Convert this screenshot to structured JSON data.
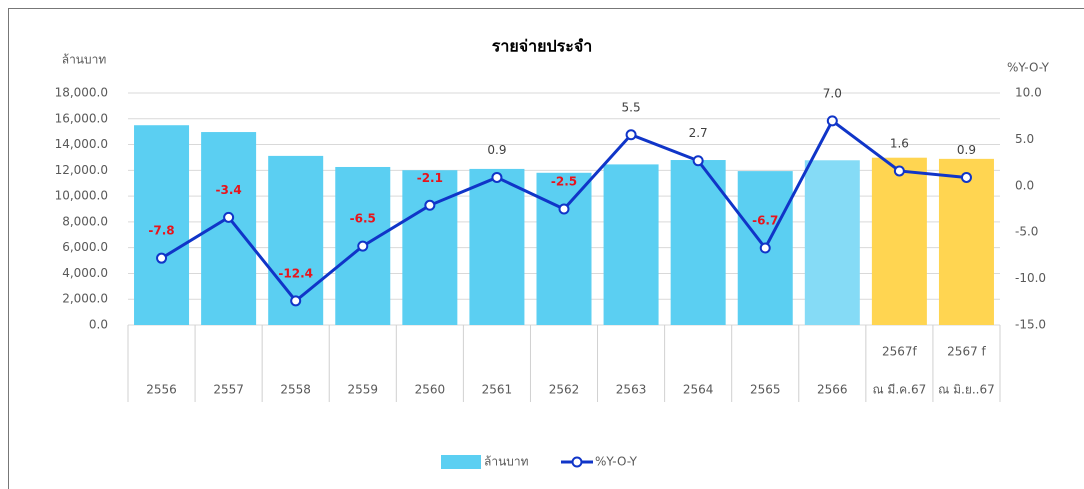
{
  "chart_data": {
    "type": "bar_line",
    "title": "รายจ่ายประจำ",
    "y_label": "ล้านบาท",
    "y2_label": "%Y-O-Y",
    "categories": [
      "2556",
      "2557",
      "2558",
      "2559",
      "2560",
      "2561",
      "2562",
      "2563",
      "2564",
      "2565",
      "2566",
      [
        "2567f",
        "ณ มี.ค.67"
      ],
      [
        "2567 f",
        "ณ มิ.ย..67"
      ]
    ],
    "series": [
      {
        "name": "ล้านบาท",
        "type": "bar",
        "colors": [
          "#5bcff2",
          "#5bcff2",
          "#5bcff2",
          "#5bcff2",
          "#5bcff2",
          "#5bcff2",
          "#5bcff2",
          "#5bcff2",
          "#5bcff2",
          "#5bcff2",
          "#85dbf6",
          "#ffd551",
          "#ffd551"
        ],
        "values": [
          15500,
          14970,
          13120,
          12260,
          12010,
          12110,
          11810,
          12460,
          12800,
          11940,
          12780,
          12980,
          12890
        ]
      },
      {
        "name": "%Y-O-Y",
        "type": "line",
        "axis": "y2",
        "color": "#1035c8",
        "values": [
          -7.8,
          -3.4,
          -12.4,
          -6.5,
          -2.1,
          0.9,
          -2.5,
          5.5,
          2.7,
          -6.7,
          7.0,
          1.6,
          0.9
        ],
        "value_labels": [
          "-7.8",
          "-3.4",
          "-12.4",
          "-6.5",
          "-2.1",
          "0.9",
          "-2.5",
          "5.5",
          "2.7",
          "-6.7",
          "7.0",
          "1.6",
          "0.9"
        ]
      }
    ],
    "ylim": [
      0,
      18000
    ],
    "yticks": [
      {
        "value": 0,
        "label": "0.0"
      },
      {
        "value": 2000,
        "label": "2,000.0"
      },
      {
        "value": 4000,
        "label": "4,000.0"
      },
      {
        "value": 6000,
        "label": "6,000.0"
      },
      {
        "value": 8000,
        "label": "8,000.0"
      },
      {
        "value": 10000,
        "label": "10,000.0"
      },
      {
        "value": 12000,
        "label": "12,000.0"
      },
      {
        "value": 14000,
        "label": "14,000.0"
      },
      {
        "value": 16000,
        "label": "16,000.0"
      },
      {
        "value": 18000,
        "label": "18,000.0"
      }
    ],
    "y2lim": [
      -15,
      10
    ],
    "y2ticks": [
      {
        "value": -15,
        "label": "-15.0"
      },
      {
        "value": -10,
        "label": "-10.0"
      },
      {
        "value": -5,
        "label": "-5.0"
      },
      {
        "value": 0,
        "label": "0.0"
      },
      {
        "value": 5,
        "label": "5.0"
      },
      {
        "value": 10,
        "label": "10.0"
      }
    ],
    "grid": true,
    "legend": "bottom"
  }
}
